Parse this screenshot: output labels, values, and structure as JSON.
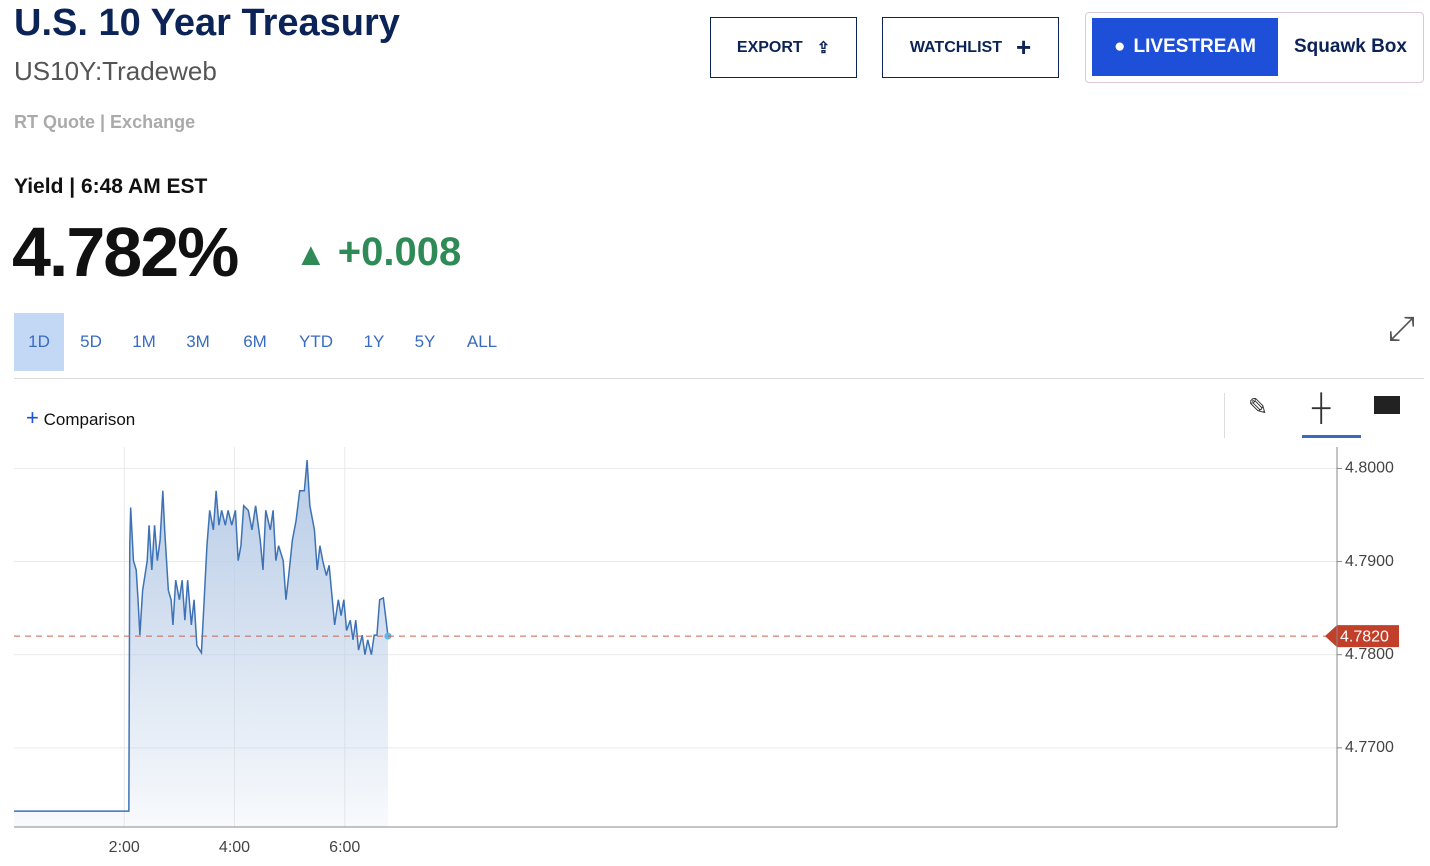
{
  "header": {
    "title": "U.S. 10 Year Treasury",
    "symbol": "US10Y:Tradeweb",
    "quote_type": "RT Quote",
    "quote_source": "Exchange",
    "buttons": [
      "EXPORT",
      "WATCHLIST"
    ],
    "livestream": "LIVESTREAM",
    "show": "Squawk Box"
  },
  "quote": {
    "label": "Yield | 6:48 AM EST",
    "price": "4.782%",
    "change": "+0.008"
  },
  "ranges": [
    "1D",
    "5D",
    "1M",
    "3M",
    "6M",
    "YTD",
    "1Y",
    "5Y",
    "ALL"
  ],
  "comparison": "Comparison",
  "chart_data": {
    "type": "line",
    "x": [
      0,
      125,
      126,
      127,
      130,
      133,
      135,
      137,
      140,
      145,
      147,
      150,
      153,
      156,
      159,
      162,
      164,
      168,
      171,
      173,
      176,
      180,
      183,
      186,
      189,
      193,
      196,
      199,
      204,
      207,
      210,
      213,
      217,
      220,
      223,
      226,
      230,
      233,
      237,
      241,
      244,
      247,
      250,
      255,
      259,
      263,
      268,
      271,
      274,
      279,
      282,
      285,
      288,
      293,
      296,
      299,
      303,
      307,
      311,
      316,
      319,
      322,
      327,
      330,
      333,
      336,
      340,
      343,
      346,
      349,
      353,
      356,
      359,
      362,
      366,
      369,
      372,
      375,
      379,
      382,
      385,
      389,
      392,
      395,
      398,
      402,
      405,
      407
    ],
    "series": [
      {
        "name": "US10Y",
        "color": "#3d72b4",
        "values": [
          4.7632,
          4.7632,
          4.7917,
          4.7958,
          4.7901,
          4.7891,
          4.7859,
          4.7821,
          4.7869,
          4.7901,
          4.7939,
          4.7891,
          4.7939,
          4.7901,
          4.7923,
          4.7976,
          4.7934,
          4.7869,
          4.7859,
          4.7832,
          4.788,
          4.7859,
          4.788,
          4.7837,
          4.788,
          4.7832,
          4.7859,
          4.781,
          4.7802,
          4.7859,
          4.7917,
          4.7955,
          4.7934,
          4.7976,
          4.7939,
          4.7955,
          4.7939,
          4.7955,
          4.7939,
          4.7955,
          4.7901,
          4.7917,
          4.796,
          4.7955,
          4.7934,
          4.796,
          4.7923,
          4.7891,
          4.7955,
          4.7934,
          4.7955,
          4.7901,
          4.7917,
          4.7901,
          4.7859,
          4.7885,
          4.7923,
          4.7944,
          4.7976,
          4.7976,
          4.8009,
          4.796,
          4.7934,
          4.7891,
          4.7917,
          4.7901,
          4.7885,
          4.7896,
          4.7864,
          4.7832,
          4.7859,
          4.7842,
          4.7859,
          4.7826,
          4.7837,
          4.7816,
          4.7837,
          4.7805,
          4.7821,
          4.78,
          4.7816,
          4.78,
          4.7821,
          4.7821,
          4.7859,
          4.7861,
          4.7837,
          4.782
        ]
      }
    ],
    "last_value": 4.782,
    "last_label": "4.7820",
    "xlim": [
      0,
      1440
    ],
    "xticks": [
      {
        "value": 120,
        "label": "2:00"
      },
      {
        "value": 240,
        "label": "4:00"
      },
      {
        "value": 360,
        "label": "6:00"
      }
    ],
    "ylim": [
      4.7615,
      4.8023
    ],
    "yticks": [
      {
        "value": 4.77,
        "label": "4.7700"
      },
      {
        "value": 4.78,
        "label": "4.7800"
      },
      {
        "value": 4.79,
        "label": "4.7900"
      },
      {
        "value": 4.8,
        "label": "4.8000"
      }
    ],
    "grid": true
  }
}
